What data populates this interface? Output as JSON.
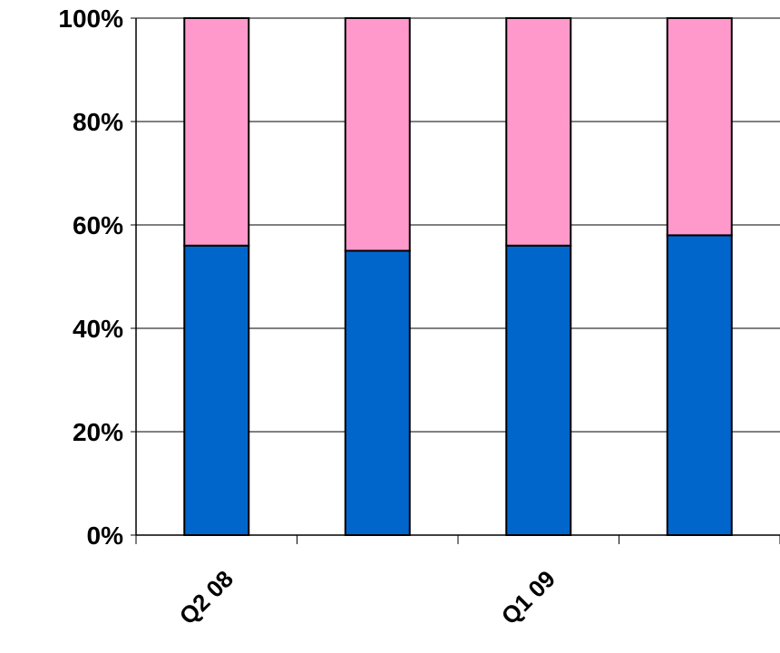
{
  "chart_data": {
    "type": "bar",
    "stacked": true,
    "percent": true,
    "categories": [
      "Q2 08",
      "",
      "Q1 09",
      ""
    ],
    "series": [
      {
        "values": [
          56,
          55,
          56,
          58
        ],
        "color": "#0066cc"
      },
      {
        "values": [
          44,
          45,
          44,
          42
        ],
        "color": "#ff99cc"
      }
    ],
    "ylim": [
      0,
      100
    ],
    "yticks": [
      "0%",
      "20%",
      "40%",
      "60%",
      "80%",
      "100%"
    ],
    "xtick_labels": [
      "Q2 08",
      "Q1 09"
    ],
    "grid": true,
    "legend": "none",
    "colors": {
      "grid": "#000000",
      "axis": "#000000",
      "bar_outline": "#000000",
      "background": "#ffffff"
    }
  }
}
